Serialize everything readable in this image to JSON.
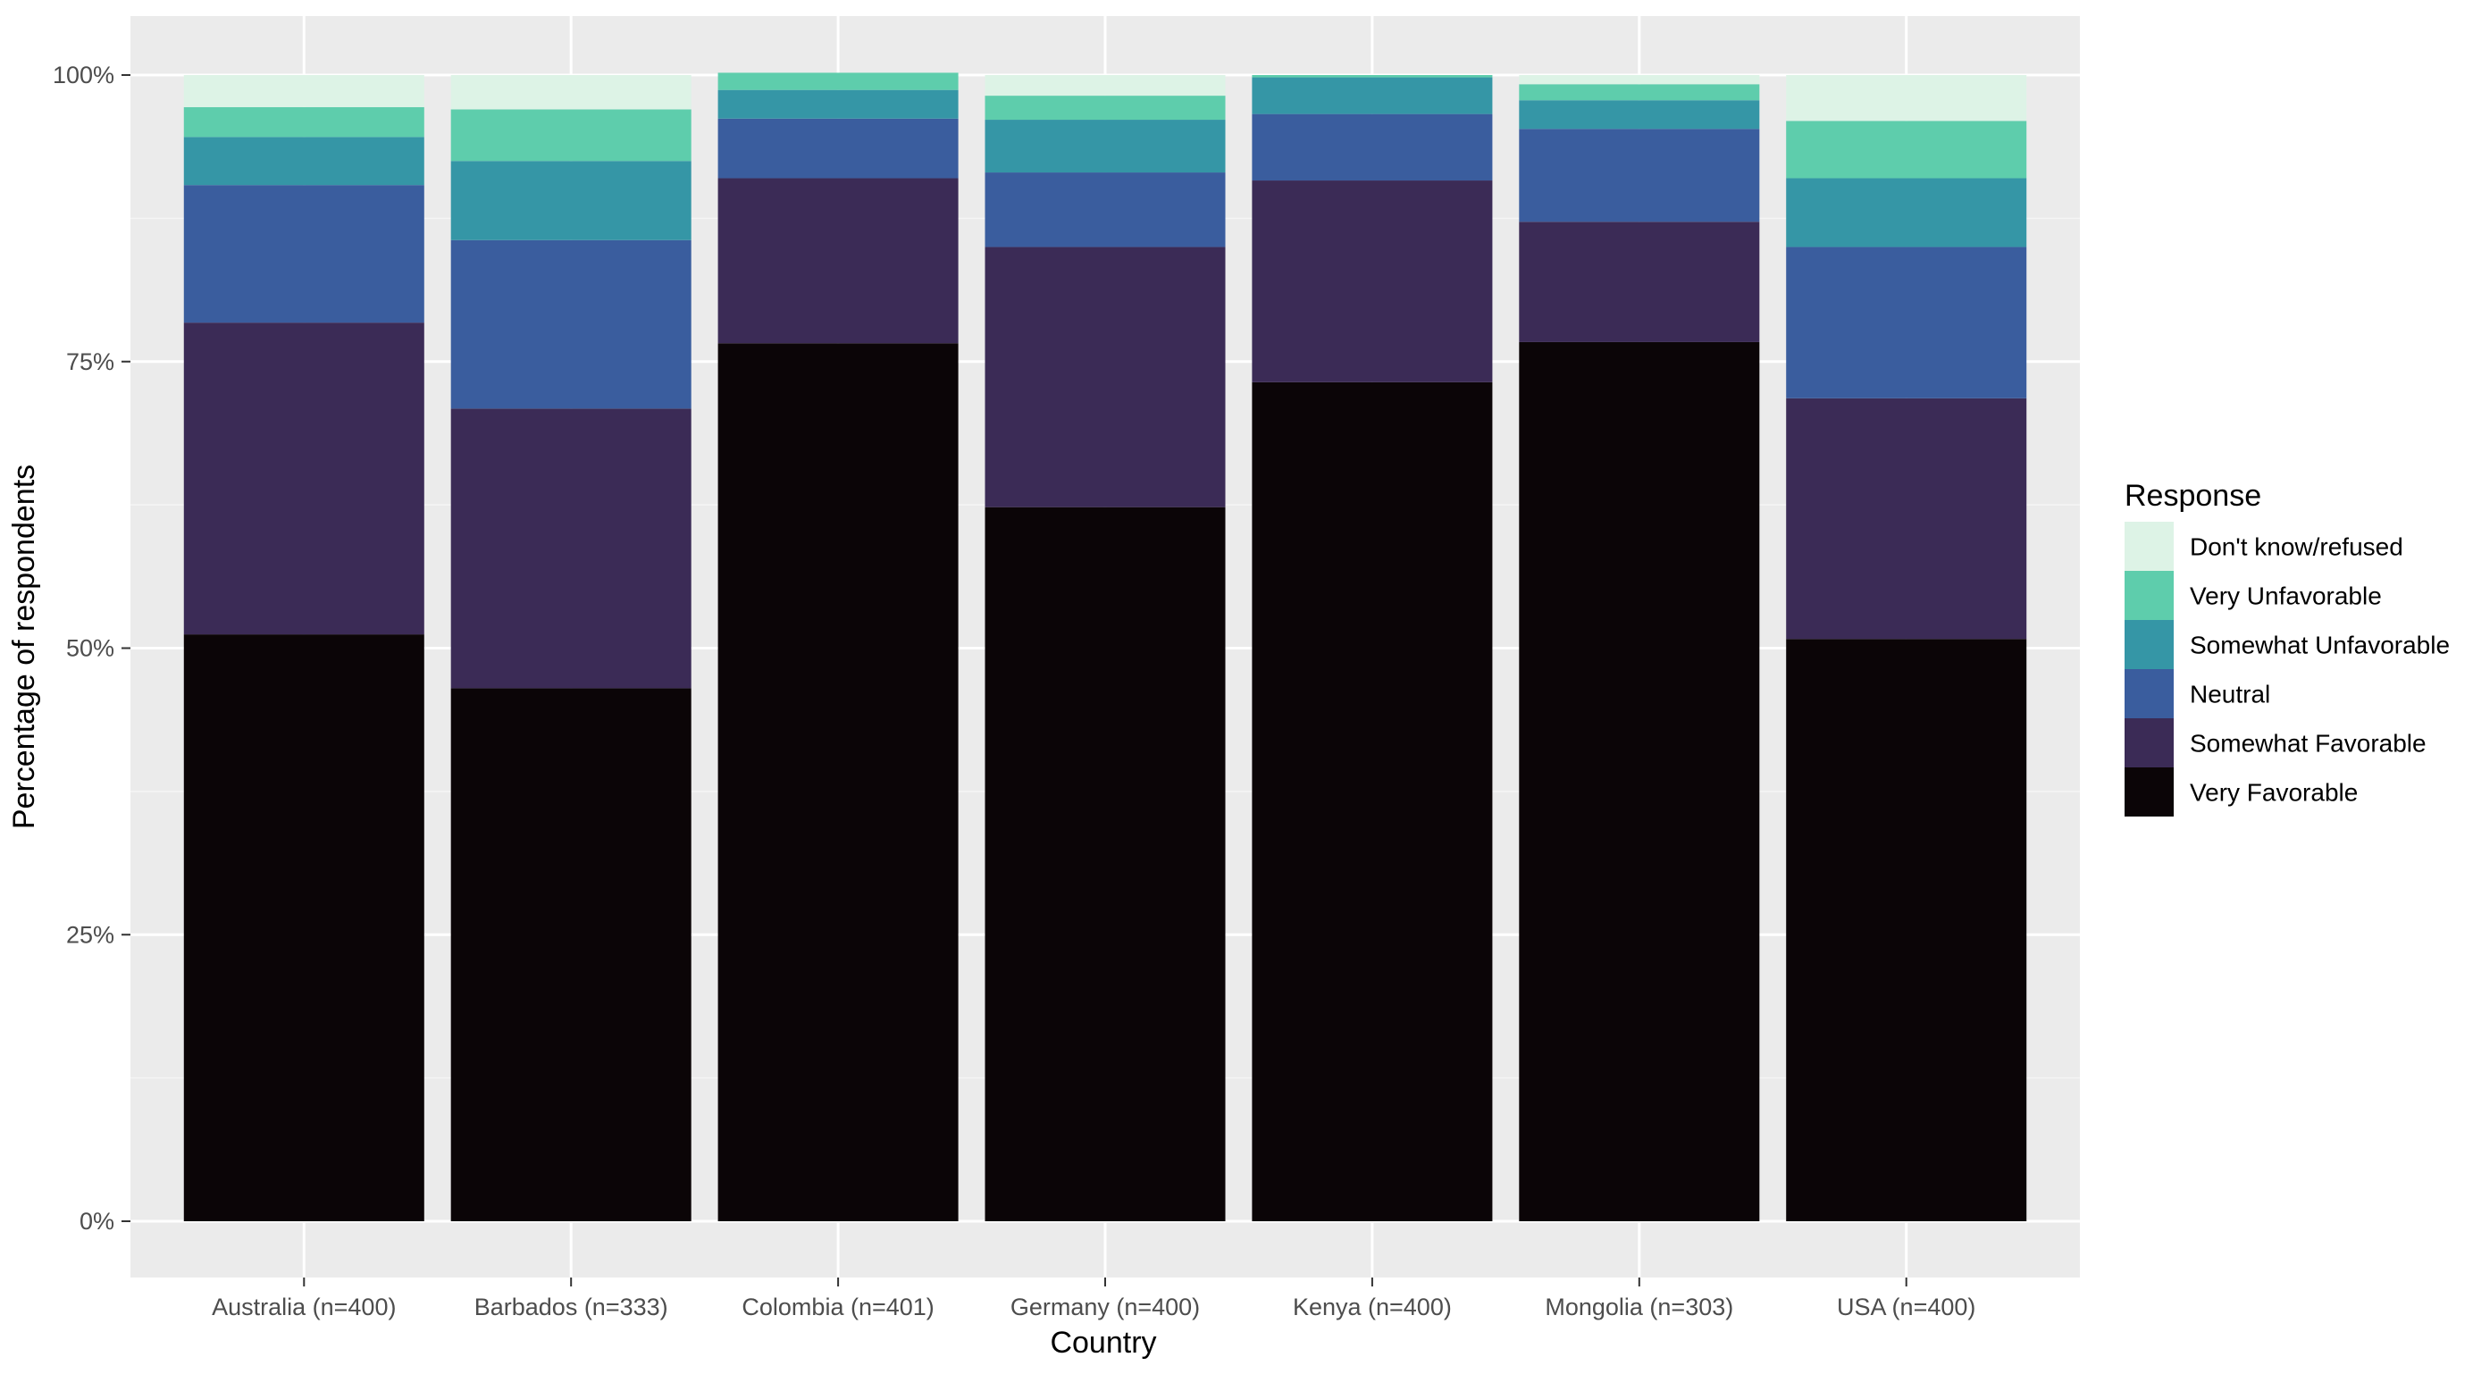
{
  "chart_data": {
    "type": "bar",
    "stacked": true,
    "xlabel": "Country",
    "ylabel": "Percentage of respondents",
    "categories": [
      "Australia (n=400)",
      "Barbados (n=333)",
      "Colombia (n=401)",
      "Germany (n=400)",
      "Kenya (n=400)",
      "Mongolia (n=303)",
      "USA (n=400)"
    ],
    "series": [
      {
        "name": "Very Favorable",
        "color": "#0b0507",
        "values": [
          51.2,
          46.5,
          76.6,
          62.3,
          73.2,
          76.7,
          50.8
        ]
      },
      {
        "name": "Somewhat Favorable",
        "color": "#3b2b56",
        "values": [
          27.2,
          24.4,
          14.4,
          22.7,
          17.6,
          10.5,
          21.0
        ]
      },
      {
        "name": "Neutral",
        "color": "#3a5d9e",
        "values": [
          12.0,
          14.7,
          5.2,
          6.5,
          5.8,
          8.1,
          13.2
        ]
      },
      {
        "name": "Somewhat Unfavorable",
        "color": "#3596a6",
        "values": [
          4.2,
          6.9,
          2.5,
          4.6,
          3.2,
          2.5,
          6.0
        ]
      },
      {
        "name": "Very Unfavorable",
        "color": "#5ecdac",
        "values": [
          2.6,
          4.5,
          1.5,
          2.1,
          0.2,
          1.4,
          5.0
        ]
      },
      {
        "name": "Don't know/refused",
        "color": "#ddf3e6",
        "values": [
          2.8,
          3.0,
          0.0,
          1.8,
          0.0,
          0.8,
          4.0
        ]
      }
    ],
    "ylim": [
      0,
      100
    ],
    "yticks": [
      "0%",
      "25%",
      "50%",
      "75%",
      "100%"
    ],
    "grid": true,
    "legend": {
      "title": "Response",
      "position": "right"
    }
  },
  "colors": {
    "panel_background": "#ebebeb",
    "grid_major": "#ffffff",
    "grid_minor": "#f5f5f5"
  }
}
